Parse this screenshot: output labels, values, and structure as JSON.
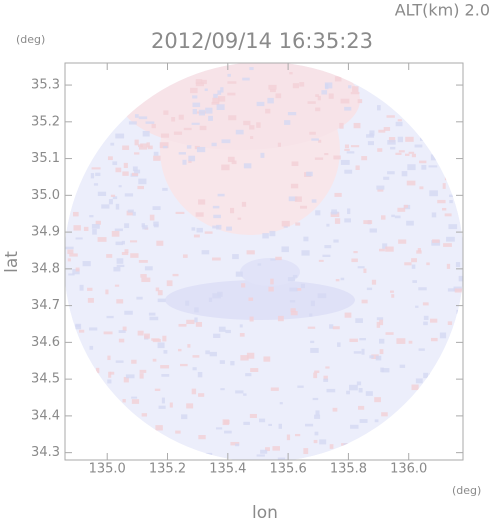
{
  "chart_data": {
    "type": "radar-field",
    "title": "2012/09/14 16:35:23",
    "subtitle": "ALT(km) 2.0",
    "x_label": "lon",
    "x_unit": "(deg)",
    "y_label": "lat",
    "y_unit": "(deg)",
    "xlim": [
      134.86,
      136.18
    ],
    "xticks": [
      {
        "value": 135,
        "label": "135.0"
      },
      135.2,
      135.4,
      135.6,
      135.8,
      {
        "value": 136,
        "label": "136.0"
      }
    ],
    "ylim": [
      34.28,
      35.36
    ],
    "yticks": [
      34.3,
      34.4,
      34.5,
      34.6,
      34.7,
      34.8,
      34.9,
      {
        "value": 35,
        "label": "35.0"
      },
      35.1,
      35.2,
      35.3
    ]
  }
}
